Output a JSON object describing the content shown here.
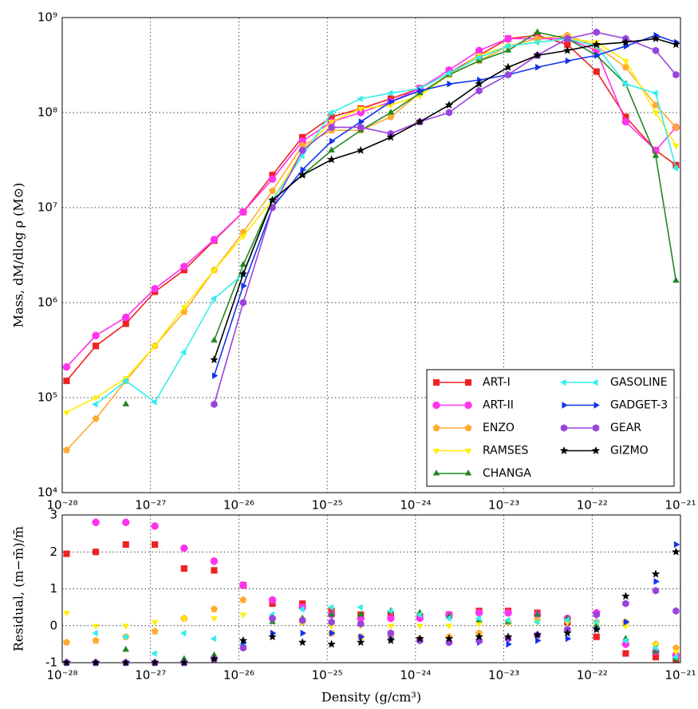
{
  "chart_data": [
    {
      "type": "line",
      "ylabel": "Mass, dM/dlog ρ (M⊙)",
      "xscale": "log",
      "yscale": "log",
      "grid": true,
      "legend": "lower right",
      "xlim": [
        1e-28,
        1e-21
      ],
      "ylim": [
        10000.0,
        1000000000.0
      ],
      "xticks": [
        {
          "value": 1e-28,
          "label": "10⁻²⁸"
        },
        {
          "value": 1e-27,
          "label": "10⁻²⁷"
        },
        {
          "value": 1e-26,
          "label": "10⁻²⁶"
        },
        {
          "value": 1e-25,
          "label": "10⁻²⁵"
        },
        {
          "value": 1e-24,
          "label": "10⁻²⁴"
        },
        {
          "value": 1e-23,
          "label": "10⁻²³"
        },
        {
          "value": 1e-22,
          "label": "10⁻²²"
        },
        {
          "value": 1e-21,
          "label": "10⁻²¹"
        }
      ],
      "yticks": [
        {
          "value": 10000.0,
          "label": "10⁴"
        },
        {
          "value": 100000.0,
          "label": "10⁵"
        },
        {
          "value": 1000000.0,
          "label": "10⁶"
        },
        {
          "value": 10000000.0,
          "label": "10⁷"
        },
        {
          "value": 100000000.0,
          "label": "10⁸"
        },
        {
          "value": 1000000000.0,
          "label": "10⁹"
        }
      ],
      "x": [
        1.12e-28,
        2.4e-28,
        5.25e-28,
        1.12e-27,
        2.4e-27,
        5.25e-27,
        1.12e-26,
        2.4e-26,
        5.25e-26,
        1.12e-25,
        2.4e-25,
        5.25e-25,
        1.12e-24,
        2.4e-24,
        5.25e-24,
        1.12e-23,
        2.4e-23,
        5.25e-23,
        1.12e-22,
        2.4e-22,
        5.25e-22,
        8.9e-22
      ],
      "series": [
        {
          "name": "ART-I",
          "color": "#ee2222",
          "marker": "square",
          "values": [
            150000.0,
            350000.0,
            600000.0,
            1300000.0,
            2200000.0,
            4500000.0,
            9000000.0,
            22000000.0,
            55000000.0,
            90000000.0,
            110000000.0,
            140000000.0,
            180000000.0,
            260000000.0,
            400000000.0,
            600000000.0,
            650000000.0,
            520000000.0,
            270000000.0,
            90000000.0,
            40000000.0,
            28000000.0
          ]
        },
        {
          "name": "ART-II",
          "color": "#ff33ee",
          "marker": "circle",
          "values": [
            210000.0,
            450000.0,
            700000.0,
            1400000.0,
            2400000.0,
            4600000.0,
            9000000.0,
            20000000.0,
            50000000.0,
            80000000.0,
            100000000.0,
            130000000.0,
            180000000.0,
            280000000.0,
            450000000.0,
            600000000.0,
            600000000.0,
            600000000.0,
            450000000.0,
            80000000.0,
            40000000.0,
            70000000.0
          ]
        },
        {
          "name": "ENZO",
          "color": "#ffaa33",
          "marker": "pentagon",
          "values": [
            28000.0,
            60000.0,
            150000.0,
            350000.0,
            800000.0,
            2200000.0,
            5500000.0,
            15000000.0,
            45000000.0,
            65000000.0,
            65000000.0,
            90000000.0,
            160000000.0,
            250000000.0,
            350000000.0,
            500000000.0,
            600000000.0,
            650000000.0,
            500000000.0,
            300000000.0,
            120000000.0,
            70000000.0
          ]
        },
        {
          "name": "RAMSES",
          "color": "#ffee00",
          "marker": "triangle_down",
          "values": [
            70000.0,
            100000.0,
            160000.0,
            350000.0,
            900000.0,
            2200000.0,
            5000000.0,
            12000000.0,
            40000000.0,
            80000000.0,
            110000000.0,
            120000000.0,
            150000000.0,
            250000000.0,
            400000000.0,
            500000000.0,
            550000000.0,
            600000000.0,
            550000000.0,
            350000000.0,
            100000000.0,
            45000000.0
          ]
        },
        {
          "name": "CHANGA",
          "color": "#228822",
          "marker": "triangle_up",
          "values": [
            null,
            null,
            85000.0,
            null,
            null,
            400000.0,
            2500000.0,
            12000000.0,
            22000000.0,
            40000000.0,
            65000000.0,
            100000000.0,
            160000000.0,
            250000000.0,
            350000000.0,
            450000000.0,
            700000000.0,
            600000000.0,
            400000000.0,
            200000000.0,
            35000000.0,
            1700000.0
          ]
        },
        {
          "name": "GASOLINE",
          "color": "#33eeee",
          "marker": "triangle_left",
          "values": [
            null,
            85000.0,
            150000.0,
            90000.0,
            300000.0,
            1100000.0,
            2000000.0,
            12000000.0,
            35000000.0,
            100000000.0,
            140000000.0,
            160000000.0,
            180000000.0,
            260000000.0,
            380000000.0,
            500000000.0,
            550000000.0,
            600000000.0,
            500000000.0,
            200000000.0,
            160000000.0,
            26000000.0
          ]
        },
        {
          "name": "GADGET-3",
          "color": "#1133ee",
          "marker": "triangle_right",
          "values": [
            null,
            null,
            null,
            null,
            null,
            170000.0,
            1500000.0,
            10000000.0,
            25000000.0,
            50000000.0,
            80000000.0,
            130000000.0,
            170000000.0,
            200000000.0,
            220000000.0,
            250000000.0,
            300000000.0,
            350000000.0,
            400000000.0,
            500000000.0,
            650000000.0,
            550000000.0
          ]
        },
        {
          "name": "GEAR",
          "color": "#9944dd",
          "marker": "hexagon",
          "values": [
            null,
            null,
            null,
            null,
            null,
            85000.0,
            1000000.0,
            10000000.0,
            40000000.0,
            70000000.0,
            70000000.0,
            60000000.0,
            80000000.0,
            100000000.0,
            170000000.0,
            250000000.0,
            400000000.0,
            600000000.0,
            700000000.0,
            600000000.0,
            450000000.0,
            250000000.0
          ]
        },
        {
          "name": "GIZMO",
          "color": "#000000",
          "marker": "star",
          "values": [
            null,
            null,
            null,
            null,
            null,
            250000.0,
            2000000.0,
            12000000.0,
            22000000.0,
            32000000.0,
            40000000.0,
            55000000.0,
            80000000.0,
            120000000.0,
            200000000.0,
            300000000.0,
            400000000.0,
            450000000.0,
            520000000.0,
            550000000.0,
            600000000.0,
            520000000.0
          ]
        }
      ]
    },
    {
      "type": "scatter",
      "ylabel": "Residual, (m−m̄)/m̄",
      "xlabel": "Density (g/cm³)",
      "xscale": "log",
      "yscale": "linear",
      "grid": true,
      "xlim": [
        1e-28,
        1e-21
      ],
      "ylim": [
        -1,
        3
      ],
      "xticks": [
        {
          "value": 1e-28,
          "label": "10⁻²⁸"
        },
        {
          "value": 1e-27,
          "label": "10⁻²⁷"
        },
        {
          "value": 1e-26,
          "label": "10⁻²⁶"
        },
        {
          "value": 1e-25,
          "label": "10⁻²⁵"
        },
        {
          "value": 1e-24,
          "label": "10⁻²⁴"
        },
        {
          "value": 1e-23,
          "label": "10⁻²³"
        },
        {
          "value": 1e-22,
          "label": "10⁻²²"
        },
        {
          "value": 1e-21,
          "label": "10⁻²¹"
        }
      ],
      "yticks": [
        -1,
        0,
        1,
        2,
        3
      ],
      "x": [
        1.12e-28,
        2.4e-28,
        5.25e-28,
        1.12e-27,
        2.4e-27,
        5.25e-27,
        1.12e-26,
        2.4e-26,
        5.25e-26,
        1.12e-25,
        2.4e-25,
        5.25e-25,
        1.12e-24,
        2.4e-24,
        5.25e-24,
        1.12e-23,
        2.4e-23,
        5.25e-23,
        1.12e-22,
        2.4e-22,
        5.25e-22,
        8.9e-22
      ],
      "series": [
        {
          "color": "#ee2222",
          "marker": "square",
          "values": [
            1.95,
            2.0,
            2.2,
            2.2,
            1.55,
            1.5,
            1.1,
            0.6,
            0.6,
            0.4,
            0.3,
            0.3,
            0.25,
            0.3,
            0.4,
            0.4,
            0.35,
            0.1,
            -0.3,
            -0.75,
            -0.85,
            -0.9
          ]
        },
        {
          "color": "#ff33ee",
          "marker": "circle",
          "values": [
            null,
            2.8,
            2.8,
            2.7,
            2.1,
            1.75,
            1.1,
            0.7,
            0.5,
            0.3,
            0.2,
            0.2,
            0.2,
            0.3,
            0.35,
            0.35,
            0.3,
            0.2,
            0.35,
            -0.5,
            -0.7,
            -0.8
          ]
        },
        {
          "color": "#ffaa33",
          "marker": "pentagon",
          "values": [
            -0.45,
            -0.4,
            -0.3,
            -0.15,
            0.2,
            0.45,
            0.7,
            0.2,
            0.1,
            -0.2,
            -0.3,
            -0.3,
            -0.35,
            -0.3,
            -0.2,
            0.1,
            0.15,
            0.15,
            0.1,
            0.1,
            -0.5,
            -0.6
          ]
        },
        {
          "color": "#ffee00",
          "marker": "triangle_down",
          "values": [
            0.35,
            0,
            0,
            0.1,
            0.2,
            0.2,
            0.3,
            0.2,
            0.1,
            0,
            0,
            0,
            0,
            0,
            0.05,
            0.1,
            0.1,
            0.1,
            0.05,
            0,
            -0.5,
            -0.7
          ]
        },
        {
          "color": "#228822",
          "marker": "triangle_up",
          "values": [
            -1,
            -1,
            -0.65,
            -1,
            -0.9,
            -0.8,
            -0.5,
            0.1,
            0.2,
            0.3,
            0.3,
            0.4,
            0.35,
            0.25,
            0.15,
            0.1,
            0.3,
            0.2,
            0,
            -0.35,
            -0.7,
            -0.9
          ]
        },
        {
          "color": "#33eeee",
          "marker": "triangle_left",
          "values": [
            -1,
            -0.2,
            -0.3,
            -0.75,
            -0.2,
            -0.35,
            -0.5,
            0.3,
            0.45,
            0.5,
            0.5,
            0.4,
            0.3,
            0.2,
            0.2,
            0.15,
            0.1,
            0.15,
            0.1,
            -0.4,
            -0.6,
            -0.85
          ]
        },
        {
          "color": "#1133ee",
          "marker": "triangle_right",
          "values": [
            -1,
            -1,
            -1,
            -1,
            -1,
            -0.9,
            -0.45,
            -0.2,
            -0.2,
            -0.2,
            -0.3,
            -0.35,
            -0.4,
            -0.45,
            -0.45,
            -0.5,
            -0.4,
            -0.35,
            -0.1,
            0.1,
            1.2,
            2.2
          ]
        },
        {
          "color": "#9944dd",
          "marker": "hexagon",
          "values": [
            -1,
            -1,
            -1,
            -1,
            -1,
            -0.9,
            -0.6,
            0.2,
            0.15,
            0.1,
            0.05,
            -0.2,
            -0.4,
            -0.45,
            -0.4,
            -0.35,
            -0.25,
            -0.1,
            0.3,
            0.6,
            0.95,
            0.4
          ]
        },
        {
          "color": "#000000",
          "marker": "star",
          "values": [
            -1,
            -1,
            -1,
            -1,
            -1,
            -0.9,
            -0.4,
            -0.3,
            -0.45,
            -0.5,
            -0.45,
            -0.4,
            -0.35,
            -0.35,
            -0.3,
            -0.3,
            -0.25,
            -0.2,
            -0.1,
            0.8,
            1.4,
            2.0
          ]
        }
      ]
    }
  ]
}
